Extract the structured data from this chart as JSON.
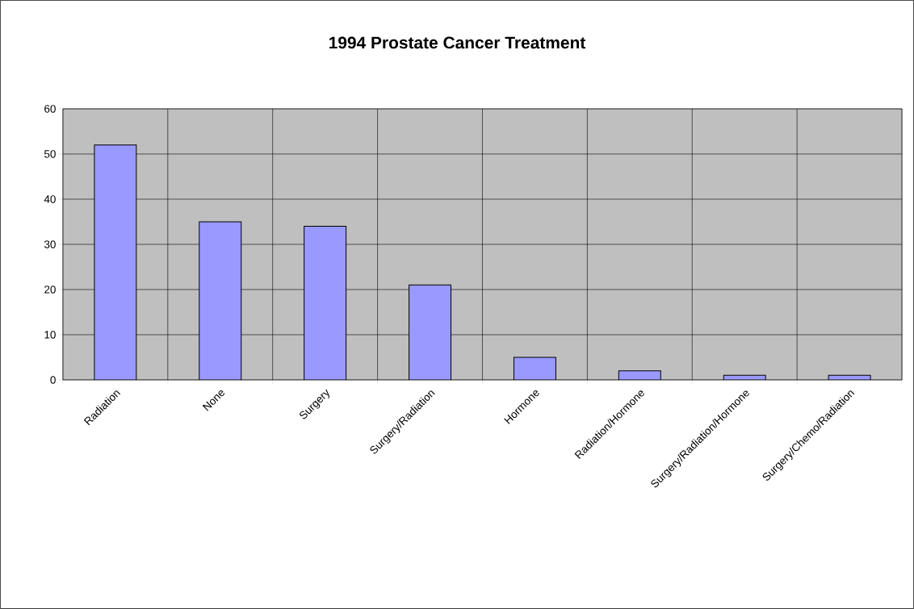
{
  "chart_data": {
    "type": "bar",
    "title": "1994 Prostate Cancer Treatment",
    "categories": [
      "Radiation",
      "None",
      "Surgery",
      "Surgery/Radiation",
      "Hormone",
      "Radiation/Hormone",
      "Surgery/Radiation/Hormone",
      "Surgery/Chemo/Radiation"
    ],
    "values": [
      52,
      35,
      34,
      21,
      5,
      2,
      1,
      1
    ],
    "color": "#9999ff",
    "ylim": [
      0,
      60
    ],
    "yticks": [
      0,
      10,
      20,
      30,
      40,
      50,
      60
    ],
    "grid": true
  }
}
